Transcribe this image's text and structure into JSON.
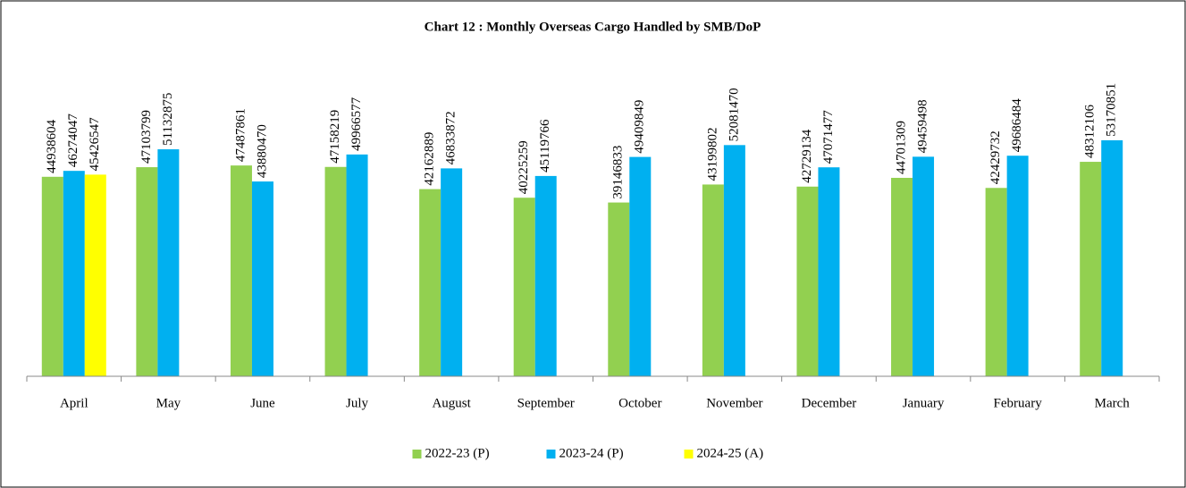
{
  "chart_data": {
    "type": "bar",
    "title": "Chart 12 : Monthly Overseas Cargo Handled by SMB/DoP",
    "categories": [
      "April",
      "May",
      "June",
      "July",
      "August",
      "September",
      "October",
      "November",
      "December",
      "January",
      "February",
      "March"
    ],
    "series": [
      {
        "name": "2022-23 (P)",
        "color": "#92d050",
        "values": [
          44938604,
          47103799,
          47487861,
          47158219,
          42162889,
          40225259,
          39146833,
          43199802,
          42729134,
          44701309,
          42429732,
          48312106
        ]
      },
      {
        "name": "2023-24 (P)",
        "color": "#00b0f0",
        "values": [
          46274047,
          51132875,
          43880470,
          49966577,
          46833872,
          45119766,
          49409849,
          52081470,
          47071477,
          49459498,
          49686484,
          53170851
        ]
      },
      {
        "name": "2024-25 (A)",
        "color": "#ffff00",
        "values": [
          45426547,
          null,
          null,
          null,
          null,
          null,
          null,
          null,
          null,
          null,
          null,
          null
        ]
      }
    ],
    "ylim": [
      0,
      60000000
    ],
    "legend": "bottom"
  }
}
